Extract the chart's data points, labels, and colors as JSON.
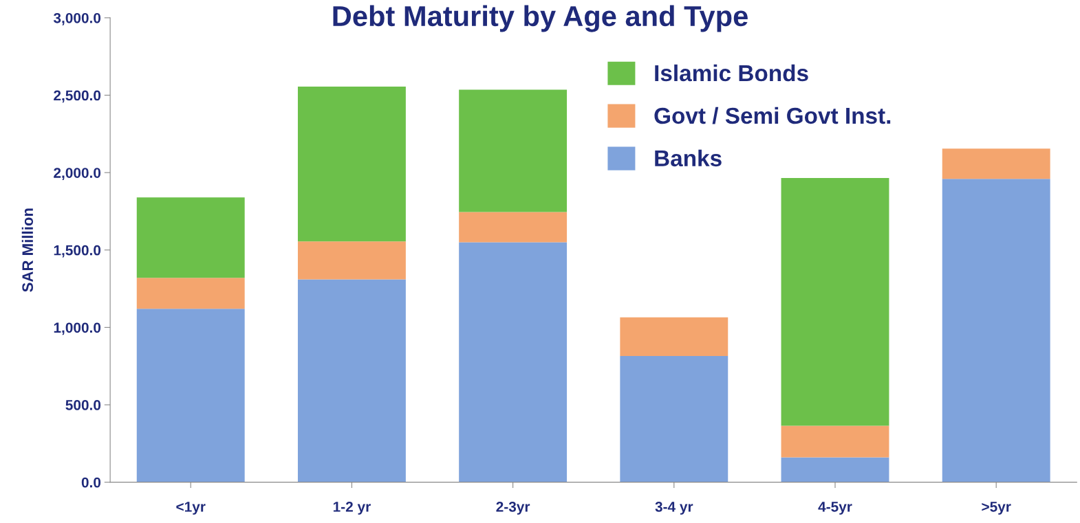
{
  "chart_data": {
    "type": "bar",
    "title": "Debt Maturity by Age and Type",
    "ylabel": "SAR Million",
    "stacked": true,
    "legend": "top right",
    "grid": false,
    "categories": [
      "<1yr",
      "1-2 yr",
      "2-3yr",
      "3-4 yr",
      "4-5yr",
      ">5yr"
    ],
    "series": [
      {
        "name": "Banks",
        "color": "#7fa3dc",
        "values": [
          1120,
          1310,
          1550,
          815,
          160,
          1960
        ]
      },
      {
        "name": "Govt / Semi Govt Inst.",
        "color": "#f4a56e",
        "values": [
          200,
          245,
          195,
          250,
          205,
          195
        ]
      },
      {
        "name": "Islamic Bonds",
        "color": "#6cc04a",
        "values": [
          520,
          1000,
          790,
          0,
          1600,
          0
        ]
      }
    ],
    "ylim": [
      0,
      3000
    ],
    "yticks": [
      {
        "value": 0,
        "label": "0.0"
      },
      {
        "value": 500,
        "label": "500.0"
      },
      {
        "value": 1000,
        "label": "1,000.0"
      },
      {
        "value": 1500,
        "label": "1,500.0"
      },
      {
        "value": 2000,
        "label": "2,000.0"
      },
      {
        "value": 2500,
        "label": "2,500.0"
      },
      {
        "value": 3000,
        "label": "3,000.0"
      }
    ]
  }
}
